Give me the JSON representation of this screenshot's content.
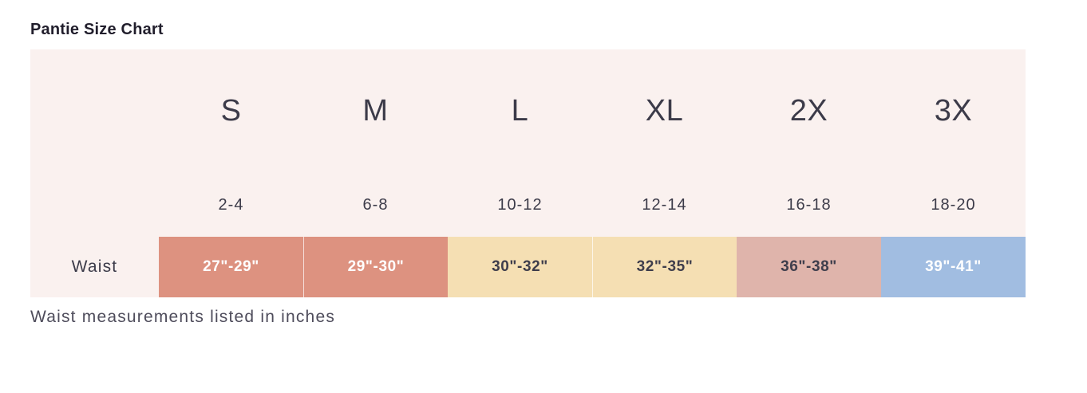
{
  "page": {
    "title": "Pantie Size Chart",
    "caption": "Waist measurements listed in inches"
  },
  "theme": {
    "chart_background": "#FAF1EF",
    "title_color": "#211E2C",
    "text_color": "#3C3B49",
    "caption_color": "#4E4C5B"
  },
  "chart_data": {
    "type": "table",
    "title": "Pantie Size Chart",
    "caption": "Waist measurements listed in inches",
    "row_label": "Waist",
    "columns": [
      {
        "size": "S",
        "dress_size": "2-4",
        "waist": "27\"-29\"",
        "cell_color": "#DD9280",
        "cell_text_color": "#FFFFFF"
      },
      {
        "size": "M",
        "dress_size": "6-8",
        "waist": "29\"-30\"",
        "cell_color": "#DD9280",
        "cell_text_color": "#FFFFFF"
      },
      {
        "size": "L",
        "dress_size": "10-12",
        "waist": "30\"-32\"",
        "cell_color": "#F5DFB3",
        "cell_text_color": "#3F3E4C"
      },
      {
        "size": "XL",
        "dress_size": "12-14",
        "waist": "32\"-35\"",
        "cell_color": "#F5DFB3",
        "cell_text_color": "#3F3E4C"
      },
      {
        "size": "2X",
        "dress_size": "16-18",
        "waist": "36\"-38\"",
        "cell_color": "#DFB4AB",
        "cell_text_color": "#3F3E4C"
      },
      {
        "size": "3X",
        "dress_size": "18-20",
        "waist": "39\"-41\"",
        "cell_color": "#A1BDE1",
        "cell_text_color": "#FFFFFF"
      }
    ]
  }
}
